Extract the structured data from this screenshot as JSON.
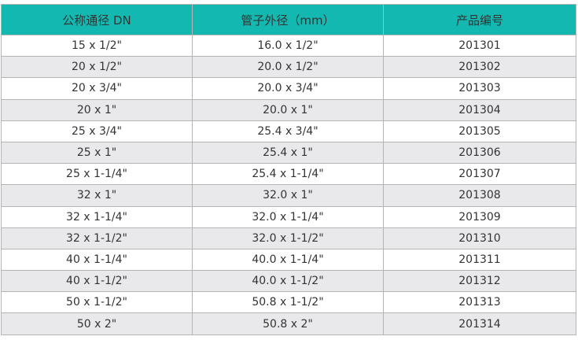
{
  "colors": {
    "header": "#13b9b0",
    "alt_row": "#e9e9eb",
    "border": "#b4b4b4"
  },
  "table": {
    "headers": [
      "公称通径 DN",
      "管子外径（mm）",
      "产品编号"
    ],
    "rows": [
      [
        "15 x 1/2\"",
        "16.0 x 1/2\"",
        "201301"
      ],
      [
        "20 x 1/2\"",
        "20.0 x 1/2\"",
        "201302"
      ],
      [
        "20 x 3/4\"",
        "20.0 x 3/4\"",
        "201303"
      ],
      [
        "20 x 1\"",
        "20.0 x 1\"",
        "201304"
      ],
      [
        "25 x 3/4\"",
        "25.4 x 3/4\"",
        "201305"
      ],
      [
        "25 x 1\"",
        "25.4 x 1\"",
        "201306"
      ],
      [
        "25 x 1-1/4\"",
        "25.4 x 1-1/4\"",
        "201307"
      ],
      [
        "32 x 1\"",
        "32.0 x 1\"",
        "201308"
      ],
      [
        "32 x 1-1/4\"",
        "32.0 x 1-1/4\"",
        "201309"
      ],
      [
        "32 x 1-1/2\"",
        "32.0 x 1-1/2\"",
        "201310"
      ],
      [
        "40 x 1-1/4\"",
        "40.0 x 1-1/4\"",
        "201311"
      ],
      [
        "40 x 1-1/2\"",
        "40.0 x 1-1/2\"",
        "201312"
      ],
      [
        "50 x 1-1/2\"",
        "50.8 x 1-1/2\"",
        "201313"
      ],
      [
        "50 x 2\"",
        "50.8 x 2\"",
        "201314"
      ]
    ]
  }
}
